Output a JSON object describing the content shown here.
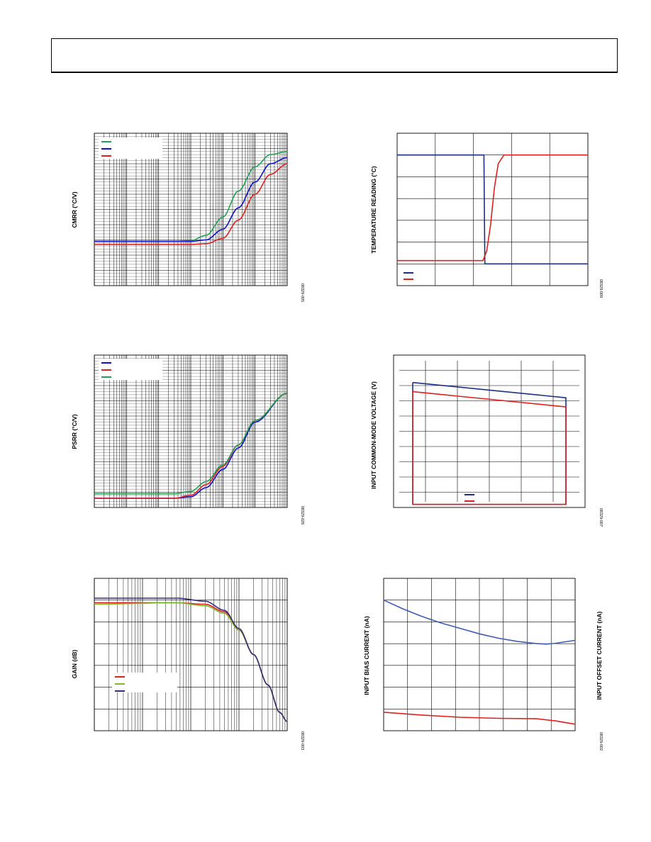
{
  "chart_data": [
    {
      "id": "cmrr",
      "type": "line",
      "ylabel": "CMRR (°C/V)",
      "figure_id": "08329-005",
      "x_scale": "log",
      "xlim": [
        1,
        1000000
      ],
      "ylim": [
        0,
        100
      ],
      "grid": true,
      "legend": "top-left",
      "series": [
        {
          "color": "#1fa055",
          "x": [
            1,
            300,
            1000,
            3000,
            10000,
            30000,
            100000,
            300000,
            1000000
          ],
          "y": [
            29,
            29,
            29.5,
            33,
            45,
            62,
            78,
            86,
            88
          ]
        },
        {
          "color": "#1010c8",
          "x": [
            1,
            1000,
            3000,
            10000,
            30000,
            100000,
            300000,
            1000000
          ],
          "y": [
            29,
            29,
            30,
            37,
            51,
            68,
            80,
            84
          ]
        },
        {
          "color": "#e02020",
          "x": [
            1,
            1000,
            3000,
            10000,
            30000,
            100000,
            300000,
            1000000
          ],
          "y": [
            27,
            27,
            27.5,
            31,
            43,
            60,
            73,
            80
          ]
        }
      ]
    },
    {
      "id": "psrr",
      "type": "line",
      "ylabel": "PSRR (°C/V)",
      "figure_id": "08329-026",
      "x_scale": "log",
      "xlim": [
        1,
        1000000
      ],
      "ylim": [
        0,
        100
      ],
      "grid": true,
      "legend": "top-left",
      "series": [
        {
          "color": "#1010c8",
          "x": [
            1,
            300,
            1000,
            3000,
            10000,
            30000,
            100000,
            1000000
          ],
          "y": [
            6,
            6,
            7,
            13,
            25,
            39,
            56,
            75
          ]
        },
        {
          "color": "#e02020",
          "x": [
            1,
            300,
            1000,
            3000,
            10000,
            30000,
            100000,
            1000000
          ],
          "y": [
            6,
            6,
            8,
            15,
            27,
            41,
            57,
            75
          ]
        },
        {
          "color": "#1fa055",
          "x": [
            1,
            300,
            1000,
            3000,
            10000,
            30000,
            100000,
            1000000
          ],
          "y": [
            9,
            9,
            10.5,
            17,
            28,
            41,
            57,
            75
          ]
        }
      ]
    },
    {
      "id": "gain",
      "type": "line",
      "ylabel": "GAIN (dB)",
      "figure_id": "08329-003",
      "x_scale": "log",
      "xlim": [
        1,
        10000
      ],
      "ylim": [
        0,
        100
      ],
      "grid": true,
      "legend": "bottom-left",
      "series": [
        {
          "color": "#e02020",
          "x": [
            1,
            50,
            200,
            500,
            1000,
            2000,
            4000,
            7000,
            10000
          ],
          "y": [
            84,
            84,
            83,
            78,
            67,
            50,
            30,
            12,
            6
          ]
        },
        {
          "color": "#7dbb2a",
          "x": [
            1,
            50,
            200,
            500,
            1000,
            2000,
            4000,
            7000,
            10000
          ],
          "y": [
            83,
            84,
            82,
            77,
            66,
            50,
            30,
            12,
            6
          ]
        },
        {
          "color": "#3a2a78",
          "x": [
            1,
            50,
            200,
            500,
            1000,
            2000,
            4000,
            7000,
            10000
          ],
          "y": [
            87,
            87,
            85,
            79,
            67,
            50,
            30,
            12,
            6
          ]
        }
      ]
    },
    {
      "id": "temp",
      "type": "line",
      "ylabel": "TEMPERATURE READING (°C)",
      "figure_id": "08329-009",
      "xlim": [
        0,
        10
      ],
      "ylim": [
        0,
        7
      ],
      "grid": true,
      "legend": "bottom-left",
      "series": [
        {
          "color": "#1f2f80",
          "x": [
            0,
            4.55,
            4.6,
            10
          ],
          "y": [
            6,
            6,
            1,
            1
          ]
        },
        {
          "color": "#e02020",
          "x": [
            0,
            4.5,
            4.7,
            4.9,
            5.1,
            5.3,
            5.6,
            10
          ],
          "y": [
            1.15,
            1.15,
            1.6,
            2.8,
            4.5,
            5.6,
            6,
            6
          ]
        }
      ]
    },
    {
      "id": "icmv",
      "type": "line",
      "ylabel": "INPUT COMMON-MODE VOLTAGE (V)",
      "figure_id": "08329-007",
      "xlim": [
        0,
        6
      ],
      "ylim": [
        0,
        10
      ],
      "grid": true,
      "legend": "bottom-center",
      "series": [
        {
          "color": "#1f2f80",
          "x": [
            0.6,
            5.4,
            5.4,
            0.6,
            0.6
          ],
          "y": [
            8.2,
            7.2,
            0.2,
            0.2,
            8.2
          ]
        },
        {
          "color": "#e02020",
          "x": [
            0.6,
            5.4,
            5.4,
            0.6,
            0.6
          ],
          "y": [
            7.6,
            6.6,
            0.2,
            0.2,
            7.6
          ]
        }
      ]
    },
    {
      "id": "bias",
      "type": "line",
      "ylabel": "INPUT BIAS CURRENT (nA)",
      "y2label": "INPUT OFFSET CURRENT (nA)",
      "figure_id": "08329-002",
      "xlim": [
        0,
        10
      ],
      "ylim": [
        0,
        7
      ],
      "grid": true,
      "series": [
        {
          "color": "#3f5bb0",
          "x": [
            0,
            1,
            2,
            3,
            4,
            5,
            6,
            7,
            8,
            8.5,
            9,
            10
          ],
          "y": [
            6,
            5.6,
            5.25,
            4.95,
            4.7,
            4.45,
            4.25,
            4.1,
            4.0,
            3.98,
            4.02,
            4.15
          ]
        },
        {
          "color": "#e02020",
          "x": [
            0,
            2,
            4,
            6,
            8,
            9,
            10
          ],
          "y": [
            0.85,
            0.72,
            0.62,
            0.57,
            0.55,
            0.45,
            0.3
          ]
        }
      ]
    }
  ]
}
